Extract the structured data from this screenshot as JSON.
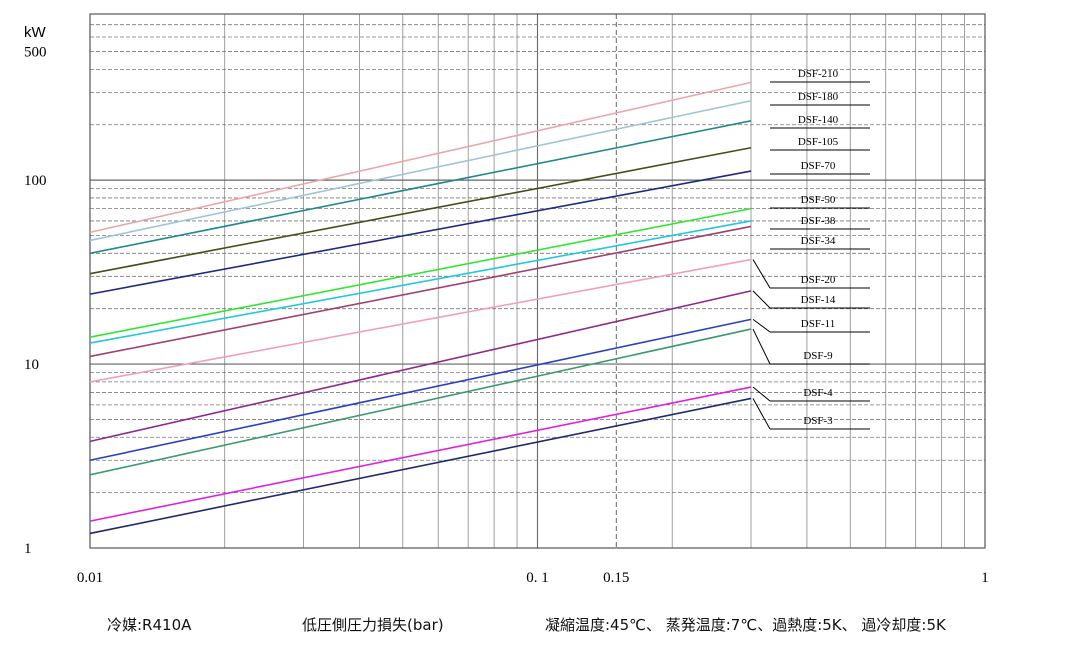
{
  "chart_data": {
    "type": "line",
    "title": "",
    "xlabel": "低圧側圧力損失(bar)",
    "ylabel": "kW",
    "xscale": "log",
    "yscale": "log",
    "xlim": [
      0.01,
      1
    ],
    "ylim": [
      1,
      800
    ],
    "grid": true,
    "x_ticks": [
      "0.01",
      "0. 1",
      "0.15",
      "1"
    ],
    "y_ticks": [
      "1",
      "10",
      "100",
      "500"
    ],
    "legend_placement": "right, labels linked to line ends",
    "series": [
      {
        "name": "DSF-210",
        "color": "#e8a8a8",
        "points": [
          [
            0.01,
            52
          ],
          [
            0.3,
            340
          ]
        ]
      },
      {
        "name": "DSF-180",
        "color": "#a0c4d4",
        "points": [
          [
            0.01,
            47
          ],
          [
            0.3,
            270
          ]
        ]
      },
      {
        "name": "DSF-140",
        "color": "#208a8a",
        "points": [
          [
            0.01,
            40
          ],
          [
            0.3,
            210
          ]
        ]
      },
      {
        "name": "DSF-105",
        "color": "#4a4a1e",
        "points": [
          [
            0.01,
            31
          ],
          [
            0.3,
            150
          ]
        ]
      },
      {
        "name": "DSF-70",
        "color": "#1e2a7e",
        "points": [
          [
            0.01,
            24
          ],
          [
            0.3,
            112
          ]
        ]
      },
      {
        "name": "DSF-50",
        "color": "#2ee82e",
        "points": [
          [
            0.01,
            14
          ],
          [
            0.3,
            70
          ]
        ]
      },
      {
        "name": "DSF-38",
        "color": "#20c8e0",
        "points": [
          [
            0.01,
            13
          ],
          [
            0.3,
            60
          ]
        ]
      },
      {
        "name": "DSF-34",
        "color": "#a04070",
        "points": [
          [
            0.01,
            11
          ],
          [
            0.3,
            56
          ]
        ]
      },
      {
        "name": "DSF-20",
        "color": "#f0a0b8",
        "points": [
          [
            0.01,
            8
          ],
          [
            0.3,
            37
          ]
        ]
      },
      {
        "name": "DSF-14",
        "color": "#8a2a8a",
        "points": [
          [
            0.01,
            3.8
          ],
          [
            0.3,
            25
          ]
        ]
      },
      {
        "name": "DSF-11",
        "color": "#2a40c0",
        "points": [
          [
            0.01,
            3.0
          ],
          [
            0.3,
            17.5
          ]
        ]
      },
      {
        "name": "DSF-9",
        "color": "#3a9a70",
        "points": [
          [
            0.01,
            2.5
          ],
          [
            0.3,
            15.5
          ]
        ]
      },
      {
        "name": "DSF-4",
        "color": "#e020e0",
        "points": [
          [
            0.01,
            1.4
          ],
          [
            0.3,
            7.5
          ]
        ]
      },
      {
        "name": "DSF-3",
        "color": "#1e2a6a",
        "points": [
          [
            0.01,
            1.2
          ],
          [
            0.3,
            6.5
          ]
        ]
      }
    ]
  },
  "footer": {
    "refrigerant": "冷媒:R410A",
    "axis_caption": "低圧側圧力損失(bar)",
    "conditions": "凝縮温度:45℃、 蒸発温度:7℃、過熱度:5K、 過冷却度:5K"
  }
}
